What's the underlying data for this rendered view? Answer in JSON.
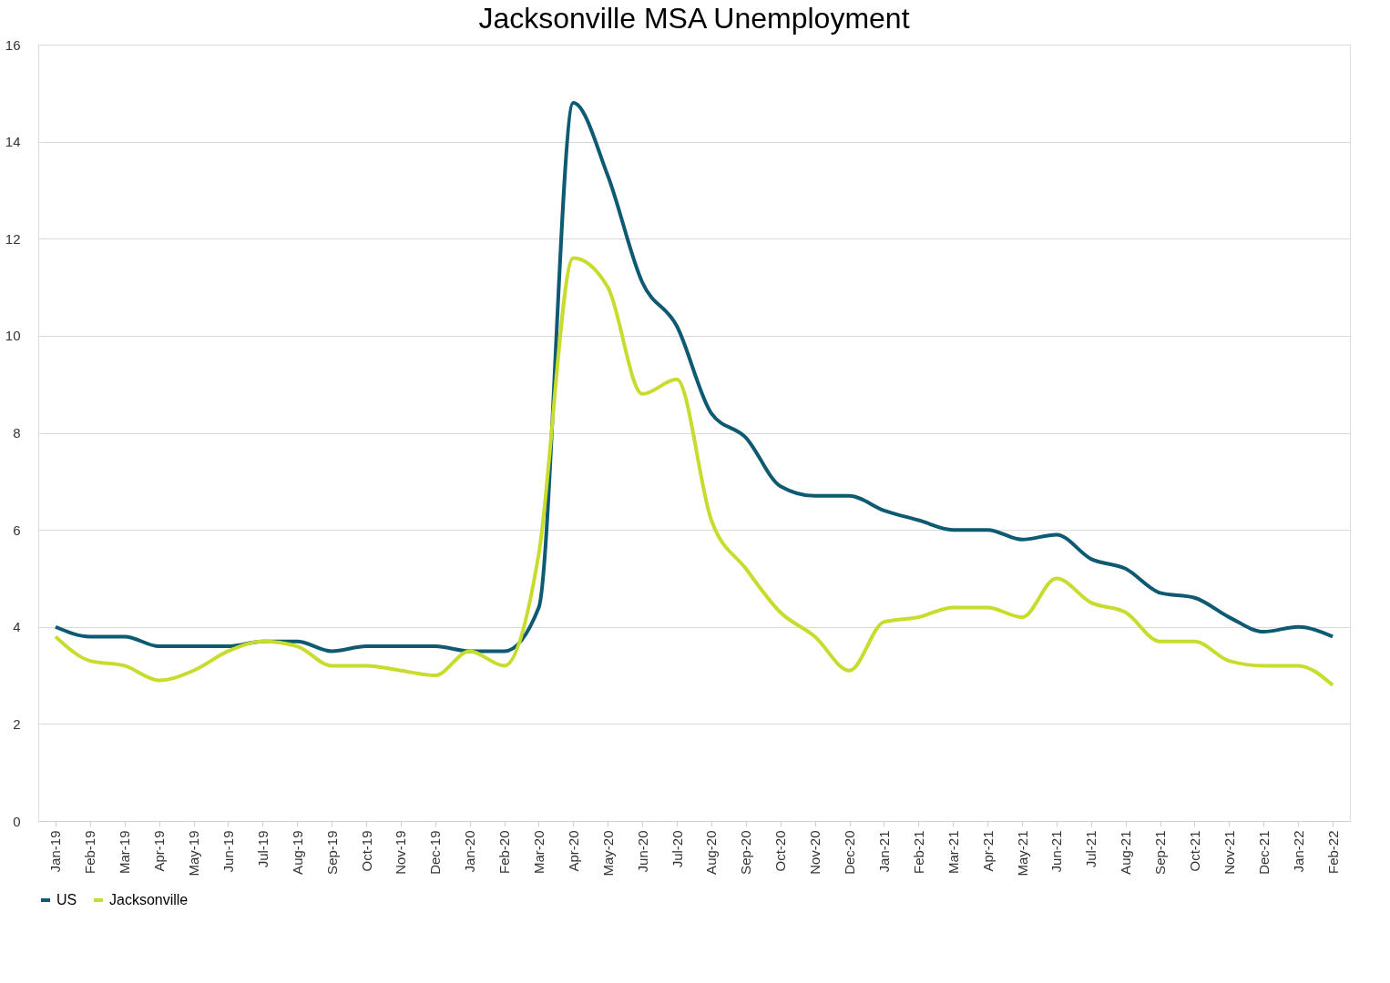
{
  "chart_data": {
    "type": "line",
    "title": "Jacksonville MSA Unemployment",
    "categories": [
      "Jan-19",
      "Feb-19",
      "Mar-19",
      "Apr-19",
      "May-19",
      "Jun-19",
      "Jul-19",
      "Aug-19",
      "Sep-19",
      "Oct-19",
      "Nov-19",
      "Dec-19",
      "Jan-20",
      "Feb-20",
      "Mar-20",
      "Apr-20",
      "May-20",
      "Jun-20",
      "Jul-20",
      "Aug-20",
      "Sep-20",
      "Oct-20",
      "Nov-20",
      "Dec-20",
      "Jan-21",
      "Feb-21",
      "Mar-21",
      "Apr-21",
      "May-21",
      "Jun-21",
      "Jul-21",
      "Aug-21",
      "Sep-21",
      "Oct-21",
      "Nov-21",
      "Dec-21",
      "Jan-22",
      "Feb-22"
    ],
    "series": [
      {
        "name": "US",
        "color": "#0e5a72",
        "values": [
          4.0,
          3.8,
          3.8,
          3.6,
          3.6,
          3.6,
          3.7,
          3.7,
          3.5,
          3.6,
          3.6,
          3.6,
          3.5,
          3.5,
          4.4,
          14.8,
          13.3,
          11.1,
          10.2,
          8.4,
          7.9,
          6.9,
          6.7,
          6.7,
          6.4,
          6.2,
          6.0,
          6.0,
          5.8,
          5.9,
          5.4,
          5.2,
          4.7,
          4.6,
          4.2,
          3.9,
          4.0,
          3.8
        ]
      },
      {
        "name": "Jacksonville",
        "color": "#c8dc2e",
        "values": [
          3.8,
          3.3,
          3.2,
          2.9,
          3.1,
          3.5,
          3.7,
          3.6,
          3.2,
          3.2,
          3.1,
          3.0,
          3.5,
          3.2,
          5.5,
          11.6,
          11.0,
          8.8,
          9.1,
          6.2,
          5.2,
          4.3,
          3.8,
          3.1,
          4.1,
          4.2,
          4.4,
          4.4,
          4.2,
          5.0,
          4.5,
          4.3,
          3.7,
          3.7,
          3.3,
          3.2,
          3.2,
          2.8
        ]
      }
    ],
    "ylim": [
      0,
      16
    ],
    "yticks": [
      0,
      2,
      4,
      6,
      8,
      10,
      12,
      14,
      16
    ],
    "grid": "y",
    "legend": "bottom"
  }
}
